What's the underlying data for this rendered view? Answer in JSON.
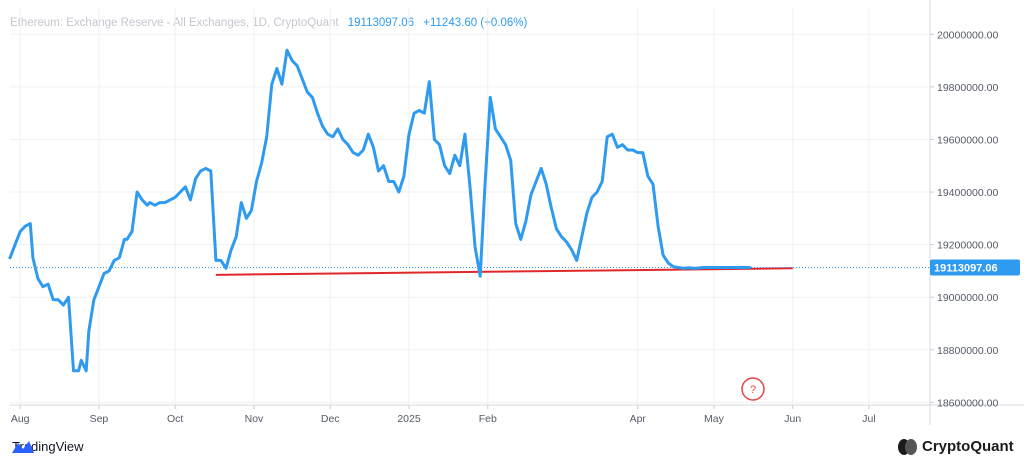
{
  "header": {
    "title": "Ethereum: Exchange Reserve - All Exchanges, 1D, CryptoQuant",
    "last_value": "19113097.06",
    "change": "+11243.60 (+0.06%)"
  },
  "price_tag": "19113097.06",
  "alert_icon": "?",
  "footer": {
    "tradingview_label": "TradingView",
    "cryptoquant_label": "CryptoQuant"
  },
  "colors": {
    "line": "#2e9bf0",
    "trendline": "#e0282a",
    "alert": "#e64545",
    "grid": "#eef0f3",
    "axis_text": "#555a66",
    "tag_bg": "#2e9bf0"
  },
  "chart_data": {
    "type": "line",
    "title": "Ethereum: Exchange Reserve - All Exchanges, 1D, CryptoQuant",
    "xlabel": "",
    "ylabel": "",
    "x_ticks": [
      "Aug",
      "Sep",
      "Oct",
      "Nov",
      "Dec",
      "2025",
      "Feb",
      "Apr",
      "May",
      "Jun",
      "Jul"
    ],
    "x_tick_dates": [
      "2024-08-01",
      "2024-09-01",
      "2024-10-01",
      "2024-11-01",
      "2024-12-01",
      "2025-01-01",
      "2025-02-01",
      "2025-04-01",
      "2025-05-01",
      "2025-06-01",
      "2025-07-01"
    ],
    "y_ticks": [
      20000000.0,
      19800000.0,
      19600000.0,
      19400000.0,
      19200000.0,
      19000000.0,
      18800000.0,
      18600000.0
    ],
    "y_tick_labels": [
      "20000000.00",
      "19800000.00",
      "19600000.00",
      "19400000.00",
      "19200000.00",
      "19000000.00",
      "18800000.00",
      "18600000.00"
    ],
    "xlim": [
      "2024-07-28",
      "2025-07-25"
    ],
    "ylim": [
      18590000,
      20100000
    ],
    "grid": true,
    "series": [
      {
        "x": [
          "2024-07-28",
          "2024-07-30",
          "2024-08-01",
          "2024-08-03",
          "2024-08-05",
          "2024-08-06",
          "2024-08-08",
          "2024-08-10",
          "2024-08-12",
          "2024-08-14",
          "2024-08-16",
          "2024-08-18",
          "2024-08-20",
          "2024-08-22",
          "2024-08-24",
          "2024-08-25",
          "2024-08-27",
          "2024-08-28",
          "2024-08-30",
          "2024-09-01",
          "2024-09-03",
          "2024-09-05",
          "2024-09-07",
          "2024-09-09",
          "2024-09-11",
          "2024-09-12",
          "2024-09-14",
          "2024-09-16",
          "2024-09-18",
          "2024-09-20",
          "2024-09-21",
          "2024-09-23",
          "2024-09-25",
          "2024-09-27",
          "2024-09-29",
          "2024-10-01",
          "2024-10-03",
          "2024-10-05",
          "2024-10-07",
          "2024-10-09",
          "2024-10-11",
          "2024-10-13",
          "2024-10-15",
          "2024-10-17",
          "2024-10-19",
          "2024-10-21",
          "2024-10-23",
          "2024-10-25",
          "2024-10-27",
          "2024-10-29",
          "2024-10-31",
          "2024-11-02",
          "2024-11-04",
          "2024-11-06",
          "2024-11-08",
          "2024-11-10",
          "2024-11-12",
          "2024-11-14",
          "2024-11-16",
          "2024-11-18",
          "2024-11-20",
          "2024-11-22",
          "2024-11-24",
          "2024-11-26",
          "2024-11-28",
          "2024-11-30",
          "2024-12-02",
          "2024-12-04",
          "2024-12-06",
          "2024-12-08",
          "2024-12-10",
          "2024-12-12",
          "2024-12-14",
          "2024-12-16",
          "2024-12-18",
          "2024-12-20",
          "2024-12-22",
          "2024-12-24",
          "2024-12-26",
          "2024-12-28",
          "2024-12-30",
          "2025-01-01",
          "2025-01-03",
          "2025-01-05",
          "2025-01-07",
          "2025-01-09",
          "2025-01-11",
          "2025-01-13",
          "2025-01-15",
          "2025-01-17",
          "2025-01-19",
          "2025-01-21",
          "2025-01-23",
          "2025-01-25",
          "2025-01-27",
          "2025-01-29",
          "2025-01-31",
          "2025-02-02",
          "2025-02-04",
          "2025-02-06",
          "2025-02-08",
          "2025-02-10",
          "2025-02-12",
          "2025-02-14",
          "2025-02-16",
          "2025-02-18",
          "2025-02-20",
          "2025-02-22",
          "2025-02-24",
          "2025-02-26",
          "2025-02-28",
          "2025-03-02",
          "2025-03-04",
          "2025-03-06",
          "2025-03-08",
          "2025-03-10",
          "2025-03-12",
          "2025-03-14",
          "2025-03-16",
          "2025-03-18",
          "2025-03-20",
          "2025-03-22",
          "2025-03-24",
          "2025-03-26",
          "2025-03-28",
          "2025-03-30",
          "2025-04-01",
          "2025-04-03",
          "2025-04-05",
          "2025-04-07",
          "2025-04-09",
          "2025-04-11",
          "2025-04-13",
          "2025-04-15",
          "2025-04-17",
          "2025-04-19",
          "2025-04-21",
          "2025-04-23",
          "2025-04-25",
          "2025-04-27",
          "2025-04-29",
          "2025-05-01",
          "2025-05-03",
          "2025-05-05",
          "2025-05-07",
          "2025-05-09",
          "2025-05-11",
          "2025-05-13",
          "2025-05-15"
        ],
        "values": [
          19150000,
          19200000,
          19250000,
          19270000,
          19280000,
          19150000,
          19070000,
          19040000,
          19050000,
          18990000,
          18990000,
          18970000,
          19000000,
          18720000,
          18720000,
          18760000,
          18720000,
          18870000,
          18990000,
          19040000,
          19090000,
          19100000,
          19140000,
          19150000,
          19220000,
          19220000,
          19250000,
          19400000,
          19370000,
          19350000,
          19360000,
          19350000,
          19360000,
          19360000,
          19370000,
          19380000,
          19400000,
          19420000,
          19370000,
          19450000,
          19480000,
          19490000,
          19480000,
          19140000,
          19140000,
          19110000,
          19180000,
          19230000,
          19360000,
          19300000,
          19330000,
          19440000,
          19510000,
          19610000,
          19810000,
          19870000,
          19810000,
          19940000,
          19900000,
          19880000,
          19830000,
          19780000,
          19760000,
          19700000,
          19650000,
          19620000,
          19610000,
          19640000,
          19600000,
          19580000,
          19550000,
          19540000,
          19560000,
          19620000,
          19570000,
          19480000,
          19500000,
          19440000,
          19440000,
          19400000,
          19460000,
          19620000,
          19700000,
          19710000,
          19700000,
          19820000,
          19600000,
          19580000,
          19500000,
          19470000,
          19540000,
          19500000,
          19620000,
          19420000,
          19190000,
          19080000,
          19440000,
          19760000,
          19640000,
          19610000,
          19580000,
          19520000,
          19280000,
          19220000,
          19290000,
          19390000,
          19440000,
          19490000,
          19430000,
          19340000,
          19260000,
          19230000,
          19210000,
          19180000,
          19140000,
          19230000,
          19320000,
          19380000,
          19400000,
          19440000,
          19610000,
          19620000,
          19570000,
          19580000,
          19560000,
          19560000,
          19550000,
          19550000,
          19460000,
          19430000,
          19270000,
          19160000,
          19130000,
          19116000,
          19113097.06,
          19110000,
          19112000,
          19110000,
          19111000,
          19113097.06,
          19113097.06,
          19113097.06,
          19113097.06,
          19113097.06,
          19113097.06,
          19113097.06,
          19113097.06,
          19113097.06,
          19113097.06
        ],
        "color": "#2e9bf0"
      }
    ],
    "trendline": {
      "x": [
        "2024-10-17",
        "2025-06-01"
      ],
      "y": [
        19085000,
        19110000
      ],
      "color": "#e0282a"
    },
    "current_value": 19113097.06
  }
}
